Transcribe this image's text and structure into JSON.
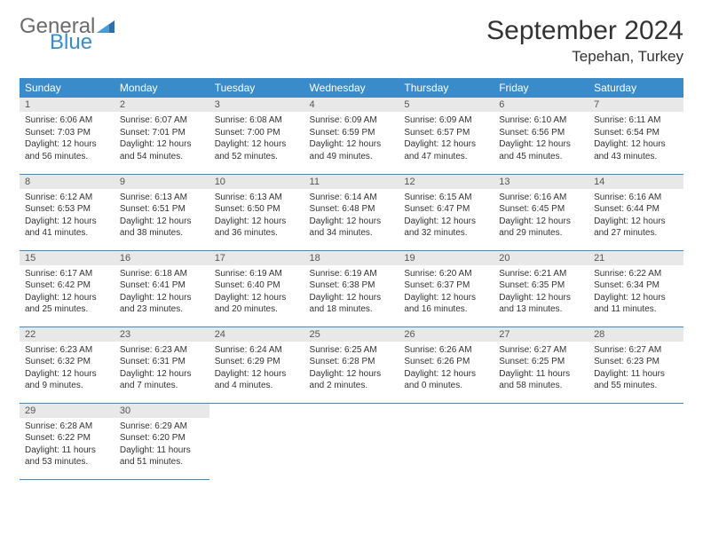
{
  "logo": {
    "general": "General",
    "blue": "Blue"
  },
  "title": "September 2024",
  "location": "Tepehan, Turkey",
  "colors": {
    "header_bg": "#3a8bc9",
    "header_text": "#ffffff",
    "daynum_bg": "#e8e8e8",
    "border": "#3a8bc9",
    "text": "#333333",
    "logo_gray": "#6b6b6b",
    "logo_blue": "#3a8bc9"
  },
  "typography": {
    "title_fontsize": 30,
    "location_fontsize": 17,
    "dayheader_fontsize": 12,
    "daynum_fontsize": 11,
    "cell_fontsize": 10
  },
  "day_headers": [
    "Sunday",
    "Monday",
    "Tuesday",
    "Wednesday",
    "Thursday",
    "Friday",
    "Saturday"
  ],
  "weeks": [
    [
      {
        "n": "1",
        "sr": "Sunrise: 6:06 AM",
        "ss": "Sunset: 7:03 PM",
        "dl": "Daylight: 12 hours and 56 minutes."
      },
      {
        "n": "2",
        "sr": "Sunrise: 6:07 AM",
        "ss": "Sunset: 7:01 PM",
        "dl": "Daylight: 12 hours and 54 minutes."
      },
      {
        "n": "3",
        "sr": "Sunrise: 6:08 AM",
        "ss": "Sunset: 7:00 PM",
        "dl": "Daylight: 12 hours and 52 minutes."
      },
      {
        "n": "4",
        "sr": "Sunrise: 6:09 AM",
        "ss": "Sunset: 6:59 PM",
        "dl": "Daylight: 12 hours and 49 minutes."
      },
      {
        "n": "5",
        "sr": "Sunrise: 6:09 AM",
        "ss": "Sunset: 6:57 PM",
        "dl": "Daylight: 12 hours and 47 minutes."
      },
      {
        "n": "6",
        "sr": "Sunrise: 6:10 AM",
        "ss": "Sunset: 6:56 PM",
        "dl": "Daylight: 12 hours and 45 minutes."
      },
      {
        "n": "7",
        "sr": "Sunrise: 6:11 AM",
        "ss": "Sunset: 6:54 PM",
        "dl": "Daylight: 12 hours and 43 minutes."
      }
    ],
    [
      {
        "n": "8",
        "sr": "Sunrise: 6:12 AM",
        "ss": "Sunset: 6:53 PM",
        "dl": "Daylight: 12 hours and 41 minutes."
      },
      {
        "n": "9",
        "sr": "Sunrise: 6:13 AM",
        "ss": "Sunset: 6:51 PM",
        "dl": "Daylight: 12 hours and 38 minutes."
      },
      {
        "n": "10",
        "sr": "Sunrise: 6:13 AM",
        "ss": "Sunset: 6:50 PM",
        "dl": "Daylight: 12 hours and 36 minutes."
      },
      {
        "n": "11",
        "sr": "Sunrise: 6:14 AM",
        "ss": "Sunset: 6:48 PM",
        "dl": "Daylight: 12 hours and 34 minutes."
      },
      {
        "n": "12",
        "sr": "Sunrise: 6:15 AM",
        "ss": "Sunset: 6:47 PM",
        "dl": "Daylight: 12 hours and 32 minutes."
      },
      {
        "n": "13",
        "sr": "Sunrise: 6:16 AM",
        "ss": "Sunset: 6:45 PM",
        "dl": "Daylight: 12 hours and 29 minutes."
      },
      {
        "n": "14",
        "sr": "Sunrise: 6:16 AM",
        "ss": "Sunset: 6:44 PM",
        "dl": "Daylight: 12 hours and 27 minutes."
      }
    ],
    [
      {
        "n": "15",
        "sr": "Sunrise: 6:17 AM",
        "ss": "Sunset: 6:42 PM",
        "dl": "Daylight: 12 hours and 25 minutes."
      },
      {
        "n": "16",
        "sr": "Sunrise: 6:18 AM",
        "ss": "Sunset: 6:41 PM",
        "dl": "Daylight: 12 hours and 23 minutes."
      },
      {
        "n": "17",
        "sr": "Sunrise: 6:19 AM",
        "ss": "Sunset: 6:40 PM",
        "dl": "Daylight: 12 hours and 20 minutes."
      },
      {
        "n": "18",
        "sr": "Sunrise: 6:19 AM",
        "ss": "Sunset: 6:38 PM",
        "dl": "Daylight: 12 hours and 18 minutes."
      },
      {
        "n": "19",
        "sr": "Sunrise: 6:20 AM",
        "ss": "Sunset: 6:37 PM",
        "dl": "Daylight: 12 hours and 16 minutes."
      },
      {
        "n": "20",
        "sr": "Sunrise: 6:21 AM",
        "ss": "Sunset: 6:35 PM",
        "dl": "Daylight: 12 hours and 13 minutes."
      },
      {
        "n": "21",
        "sr": "Sunrise: 6:22 AM",
        "ss": "Sunset: 6:34 PM",
        "dl": "Daylight: 12 hours and 11 minutes."
      }
    ],
    [
      {
        "n": "22",
        "sr": "Sunrise: 6:23 AM",
        "ss": "Sunset: 6:32 PM",
        "dl": "Daylight: 12 hours and 9 minutes."
      },
      {
        "n": "23",
        "sr": "Sunrise: 6:23 AM",
        "ss": "Sunset: 6:31 PM",
        "dl": "Daylight: 12 hours and 7 minutes."
      },
      {
        "n": "24",
        "sr": "Sunrise: 6:24 AM",
        "ss": "Sunset: 6:29 PM",
        "dl": "Daylight: 12 hours and 4 minutes."
      },
      {
        "n": "25",
        "sr": "Sunrise: 6:25 AM",
        "ss": "Sunset: 6:28 PM",
        "dl": "Daylight: 12 hours and 2 minutes."
      },
      {
        "n": "26",
        "sr": "Sunrise: 6:26 AM",
        "ss": "Sunset: 6:26 PM",
        "dl": "Daylight: 12 hours and 0 minutes."
      },
      {
        "n": "27",
        "sr": "Sunrise: 6:27 AM",
        "ss": "Sunset: 6:25 PM",
        "dl": "Daylight: 11 hours and 58 minutes."
      },
      {
        "n": "28",
        "sr": "Sunrise: 6:27 AM",
        "ss": "Sunset: 6:23 PM",
        "dl": "Daylight: 11 hours and 55 minutes."
      }
    ],
    [
      {
        "n": "29",
        "sr": "Sunrise: 6:28 AM",
        "ss": "Sunset: 6:22 PM",
        "dl": "Daylight: 11 hours and 53 minutes."
      },
      {
        "n": "30",
        "sr": "Sunrise: 6:29 AM",
        "ss": "Sunset: 6:20 PM",
        "dl": "Daylight: 11 hours and 51 minutes."
      },
      null,
      null,
      null,
      null,
      null
    ]
  ]
}
